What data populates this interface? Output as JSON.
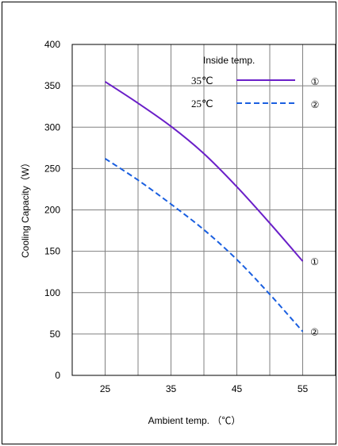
{
  "chart_data": {
    "type": "line",
    "xlabel": "Ambient temp. （℃）",
    "ylabel": "Cooling Capacity（W）",
    "xlim": [
      20,
      60
    ],
    "ylim": [
      0,
      400
    ],
    "x_ticks": [
      25,
      35,
      45,
      55
    ],
    "y_ticks": [
      0,
      50,
      100,
      150,
      200,
      250,
      300,
      350,
      400
    ],
    "grid": true,
    "legend": {
      "title": "Inside temp.",
      "placement": "top-right"
    },
    "series": [
      {
        "name": "35℃",
        "marker": "①",
        "color": "#6a1fc8",
        "style": "solid",
        "x": [
          25,
          30,
          35,
          40,
          45,
          50,
          55
        ],
        "y": [
          355,
          329,
          301,
          268,
          228,
          184,
          138
        ]
      },
      {
        "name": "25℃",
        "marker": "②",
        "color": "#1a5fe0",
        "style": "dashed",
        "x": [
          25,
          30,
          35,
          40,
          45,
          50,
          55
        ],
        "y": [
          262,
          236,
          207,
          176,
          140,
          98,
          53
        ]
      }
    ]
  }
}
